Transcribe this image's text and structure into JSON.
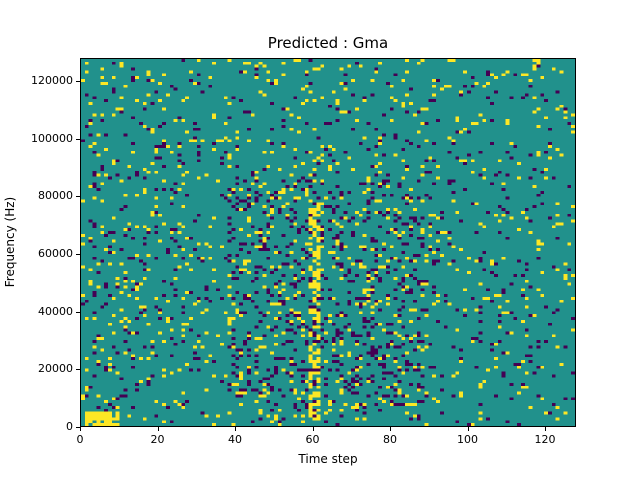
{
  "figure": {
    "background": "#ffffff"
  },
  "chart_data": {
    "type": "heatmap",
    "title": "Predicted : Gma",
    "xlabel": "Time step",
    "ylabel": "Frequency (Hz)",
    "xlim": [
      0,
      128
    ],
    "ylim": [
      0,
      128000
    ],
    "x_ticks": [
      0,
      20,
      40,
      60,
      80,
      100,
      120
    ],
    "y_ticks": [
      0,
      20000,
      40000,
      60000,
      80000,
      100000,
      120000
    ],
    "grid": {
      "cols": 128,
      "rows": 128
    },
    "legend": "none",
    "grid_lines": "off",
    "colors": {
      "background": "#21918c",
      "high": "#fde725",
      "low": "#440154",
      "spine": "#000000"
    },
    "value_meaning": {
      "background": "mid (teal, most common)",
      "high": "yellow scattered cells",
      "low": "dark purple scattered cells"
    },
    "pattern": {
      "seed": 1337,
      "base_p_high": 0.045,
      "base_p_low": 0.038,
      "features": [
        {
          "name": "dense-yellow-column-x60",
          "x": [
            59,
            61
          ],
          "rows": [
            2,
            80
          ],
          "p_high": 0.52,
          "p_low": 0.1
        },
        {
          "name": "bottom-left-yellow-patch",
          "x": [
            1,
            9
          ],
          "rows": [
            0,
            4
          ],
          "p_high": 0.8,
          "p_low": 0.0
        },
        {
          "name": "central-purple-activity-band",
          "x": [
            38,
            88
          ],
          "rows": [
            5,
            85
          ],
          "p_high": 0.07,
          "p_low": 0.13
        },
        {
          "name": "left-mid-band",
          "x": [
            3,
            32
          ],
          "rows": [
            25,
            105
          ],
          "p_high": 0.075,
          "p_low": 0.05
        },
        {
          "name": "top-yellow-band",
          "x": [
            0,
            127
          ],
          "rows": [
            112,
            127
          ],
          "p_high": 0.055,
          "p_low": 0.03
        },
        {
          "name": "right-sparse-region",
          "x": [
            96,
            127
          ],
          "rows": [
            0,
            111
          ],
          "p_high": 0.04,
          "p_low": 0.032
        }
      ]
    }
  }
}
